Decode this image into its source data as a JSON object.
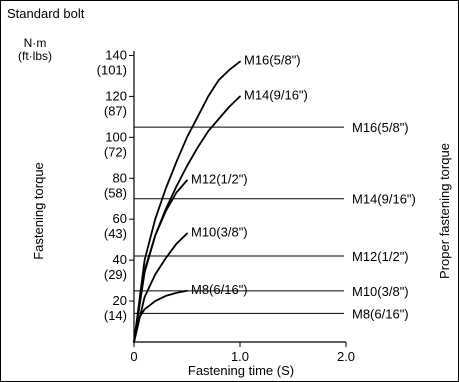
{
  "chart_data": {
    "type": "line",
    "title": "Standard bolt",
    "y_unit": "N·m",
    "y_unit_alt": "(ft·lbs)",
    "ylabel": "Fastening torque",
    "ylabel_right": "Proper fastening torque",
    "xlabel": "Fastening time (S)",
    "xlim": [
      0,
      2.0
    ],
    "ylim": [
      0,
      150
    ],
    "x_ticks": [
      {
        "value": 0,
        "label": "0"
      },
      {
        "value": 1.0,
        "label": "1.0"
      },
      {
        "value": 2.0,
        "label": "2.0"
      }
    ],
    "y_ticks": [
      {
        "value": 20,
        "label": "20",
        "alt": "(14)"
      },
      {
        "value": 40,
        "label": "40",
        "alt": "(29)"
      },
      {
        "value": 60,
        "label": "60",
        "alt": "(43)"
      },
      {
        "value": 80,
        "label": "80",
        "alt": "(58)"
      },
      {
        "value": 100,
        "label": "100",
        "alt": "(72)"
      },
      {
        "value": 120,
        "label": "120",
        "alt": "(87)"
      },
      {
        "value": 140,
        "label": "140",
        "alt": "(101)"
      }
    ],
    "series": [
      {
        "name": "M16(5/8\")",
        "x": [
          0,
          0.1,
          0.2,
          0.3,
          0.4,
          0.5,
          0.6,
          0.7,
          0.8,
          0.9,
          1.0
        ],
        "y": [
          0,
          40,
          60,
          75,
          88,
          100,
          110,
          120,
          128,
          133,
          137
        ]
      },
      {
        "name": "M14(9/16\")",
        "x": [
          0,
          0.1,
          0.2,
          0.3,
          0.4,
          0.5,
          0.6,
          0.7,
          0.8,
          0.9,
          1.0
        ],
        "y": [
          0,
          35,
          52,
          65,
          76,
          86,
          95,
          103,
          109,
          115,
          120
        ]
      },
      {
        "name": "M12(1/2\")",
        "x": [
          0,
          0.1,
          0.2,
          0.3,
          0.4,
          0.5
        ],
        "y": [
          0,
          34,
          52,
          64,
          73,
          79
        ]
      },
      {
        "name": "M10(3/8\")",
        "x": [
          0,
          0.1,
          0.2,
          0.3,
          0.4,
          0.5
        ],
        "y": [
          0,
          22,
          33,
          41,
          48,
          53
        ]
      },
      {
        "name": "M8(6/16\")",
        "x": [
          0,
          0.05,
          0.1,
          0.2,
          0.3,
          0.4,
          0.5
        ],
        "y": [
          0,
          12,
          16,
          20,
          22.5,
          24,
          25
        ]
      }
    ],
    "proper_torque_lines": [
      {
        "name": "M16(5/8\")",
        "y": 105
      },
      {
        "name": "M14(9/16\")",
        "y": 70
      },
      {
        "name": "M12(1/2\")",
        "y": 42
      },
      {
        "name": "M10(3/8\")",
        "y": 25
      },
      {
        "name": "M8(6/16\")",
        "y": 14
      }
    ],
    "grid": false,
    "colors": {
      "line": "#000000",
      "background": "#ffffff"
    }
  }
}
